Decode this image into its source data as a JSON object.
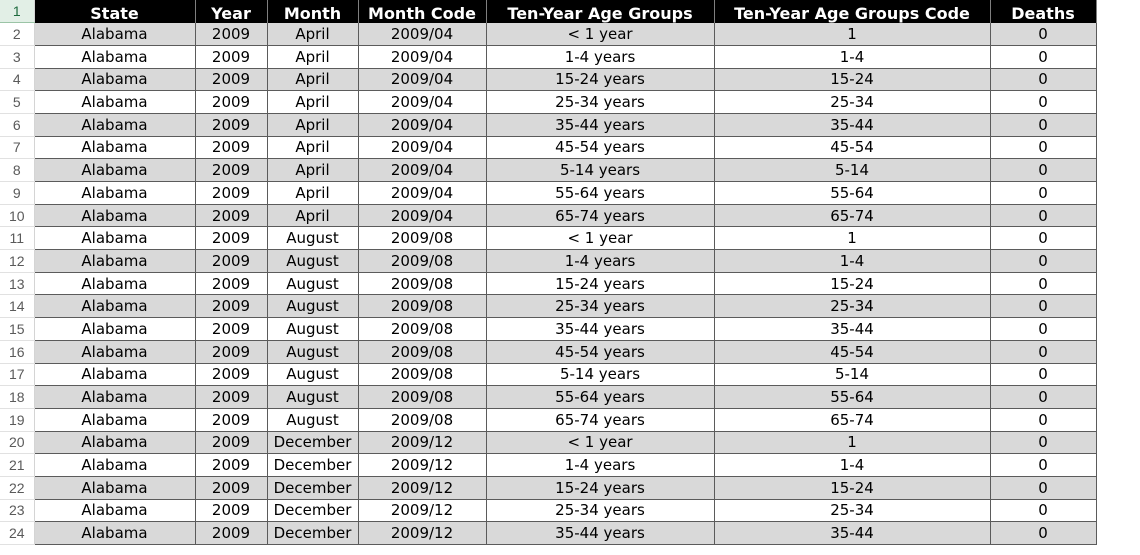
{
  "columns": [
    "State",
    "Year",
    "Month",
    "Month Code",
    "Ten-Year Age Groups",
    "Ten-Year Age Groups Code",
    "Deaths"
  ],
  "header_row_number": "1",
  "rows": [
    {
      "n": "2",
      "cells": [
        "Alabama",
        "2009",
        "April",
        "2009/04",
        "< 1 year",
        "1",
        "0"
      ]
    },
    {
      "n": "3",
      "cells": [
        "Alabama",
        "2009",
        "April",
        "2009/04",
        "1-4 years",
        "1-4",
        "0"
      ]
    },
    {
      "n": "4",
      "cells": [
        "Alabama",
        "2009",
        "April",
        "2009/04",
        "15-24 years",
        "15-24",
        "0"
      ]
    },
    {
      "n": "5",
      "cells": [
        "Alabama",
        "2009",
        "April",
        "2009/04",
        "25-34 years",
        "25-34",
        "0"
      ]
    },
    {
      "n": "6",
      "cells": [
        "Alabama",
        "2009",
        "April",
        "2009/04",
        "35-44 years",
        "35-44",
        "0"
      ]
    },
    {
      "n": "7",
      "cells": [
        "Alabama",
        "2009",
        "April",
        "2009/04",
        "45-54 years",
        "45-54",
        "0"
      ]
    },
    {
      "n": "8",
      "cells": [
        "Alabama",
        "2009",
        "April",
        "2009/04",
        "5-14 years",
        "5-14",
        "0"
      ]
    },
    {
      "n": "9",
      "cells": [
        "Alabama",
        "2009",
        "April",
        "2009/04",
        "55-64 years",
        "55-64",
        "0"
      ]
    },
    {
      "n": "10",
      "cells": [
        "Alabama",
        "2009",
        "April",
        "2009/04",
        "65-74 years",
        "65-74",
        "0"
      ]
    },
    {
      "n": "11",
      "cells": [
        "Alabama",
        "2009",
        "August",
        "2009/08",
        "< 1 year",
        "1",
        "0"
      ]
    },
    {
      "n": "12",
      "cells": [
        "Alabama",
        "2009",
        "August",
        "2009/08",
        "1-4 years",
        "1-4",
        "0"
      ]
    },
    {
      "n": "13",
      "cells": [
        "Alabama",
        "2009",
        "August",
        "2009/08",
        "15-24 years",
        "15-24",
        "0"
      ]
    },
    {
      "n": "14",
      "cells": [
        "Alabama",
        "2009",
        "August",
        "2009/08",
        "25-34 years",
        "25-34",
        "0"
      ]
    },
    {
      "n": "15",
      "cells": [
        "Alabama",
        "2009",
        "August",
        "2009/08",
        "35-44 years",
        "35-44",
        "0"
      ]
    },
    {
      "n": "16",
      "cells": [
        "Alabama",
        "2009",
        "August",
        "2009/08",
        "45-54 years",
        "45-54",
        "0"
      ]
    },
    {
      "n": "17",
      "cells": [
        "Alabama",
        "2009",
        "August",
        "2009/08",
        "5-14 years",
        "5-14",
        "0"
      ]
    },
    {
      "n": "18",
      "cells": [
        "Alabama",
        "2009",
        "August",
        "2009/08",
        "55-64 years",
        "55-64",
        "0"
      ]
    },
    {
      "n": "19",
      "cells": [
        "Alabama",
        "2009",
        "August",
        "2009/08",
        "65-74 years",
        "65-74",
        "0"
      ]
    },
    {
      "n": "20",
      "cells": [
        "Alabama",
        "2009",
        "December",
        "2009/12",
        "< 1 year",
        "1",
        "0"
      ]
    },
    {
      "n": "21",
      "cells": [
        "Alabama",
        "2009",
        "December",
        "2009/12",
        "1-4 years",
        "1-4",
        "0"
      ]
    },
    {
      "n": "22",
      "cells": [
        "Alabama",
        "2009",
        "December",
        "2009/12",
        "15-24 years",
        "15-24",
        "0"
      ]
    },
    {
      "n": "23",
      "cells": [
        "Alabama",
        "2009",
        "December",
        "2009/12",
        "25-34 years",
        "25-34",
        "0"
      ]
    },
    {
      "n": "24",
      "cells": [
        "Alabama",
        "2009",
        "December",
        "2009/12",
        "35-44 years",
        "35-44",
        "0"
      ]
    }
  ],
  "colors": {
    "header_bg": "#000000",
    "header_text": "#ffffff",
    "band_shade": "#d9d9d9",
    "band_plain": "#ffffff",
    "active_row_header": "#1e6b3e"
  }
}
